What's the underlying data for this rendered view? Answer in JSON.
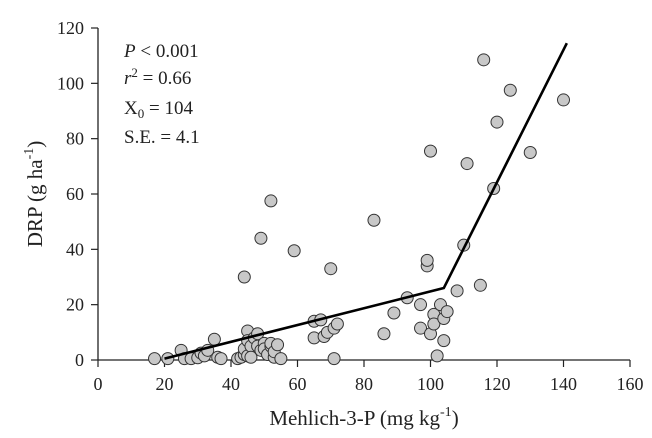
{
  "chart_data": {
    "type": "scatter",
    "xlabel": {
      "main": "Mehlich-3-P (mg kg",
      "sup": "-1",
      "close": ")"
    },
    "ylabel": {
      "main": "DRP (g ha",
      "sup": "-1",
      "close": ")"
    },
    "xlim": [
      0,
      160
    ],
    "ylim": [
      0,
      120
    ],
    "xticks": [
      "0",
      "20",
      "40",
      "60",
      "80",
      "100",
      "120",
      "140",
      "160"
    ],
    "yticks": [
      "0",
      "20",
      "40",
      "60",
      "80",
      "100",
      "120"
    ],
    "grid": false,
    "legend": "none",
    "annotations": {
      "p": {
        "sym": "P",
        "rest": " < 0.001"
      },
      "r2": {
        "sym": "r",
        "sup": "2",
        "rest": " = 0.66"
      },
      "x0": {
        "sym": "X",
        "sub": "0",
        "rest": " = 104"
      },
      "se": {
        "text": "S.E. = 4.1"
      }
    },
    "marker_fill": "#c8c8c8",
    "marker_edge": "#333333",
    "line_color": "#000000",
    "points": [
      [
        17,
        0.5
      ],
      [
        21,
        0.5
      ],
      [
        25,
        3.5
      ],
      [
        26,
        0.5
      ],
      [
        28,
        0.5
      ],
      [
        30,
        0.8
      ],
      [
        31,
        2.5
      ],
      [
        32,
        1.5
      ],
      [
        33,
        3.5
      ],
      [
        35,
        7.5
      ],
      [
        36,
        1
      ],
      [
        37,
        0.5
      ],
      [
        42,
        0.5
      ],
      [
        43,
        1
      ],
      [
        44,
        2
      ],
      [
        44,
        4
      ],
      [
        44,
        30
      ],
      [
        45,
        10.5
      ],
      [
        45,
        7
      ],
      [
        45,
        1.5
      ],
      [
        46,
        5
      ],
      [
        46,
        1
      ],
      [
        47,
        8
      ],
      [
        48,
        9.5
      ],
      [
        48,
        5
      ],
      [
        49,
        3.5
      ],
      [
        49,
        44
      ],
      [
        50,
        6
      ],
      [
        50,
        4
      ],
      [
        51,
        2
      ],
      [
        52,
        5
      ],
      [
        52,
        6
      ],
      [
        52,
        57.5
      ],
      [
        53,
        1
      ],
      [
        53,
        3
      ],
      [
        54,
        5.5
      ],
      [
        55,
        0.5
      ],
      [
        59,
        39.5
      ],
      [
        65,
        8
      ],
      [
        65,
        14
      ],
      [
        67,
        14.5
      ],
      [
        68,
        8.5
      ],
      [
        69,
        10
      ],
      [
        70,
        33
      ],
      [
        71,
        11.5
      ],
      [
        71,
        0.5
      ],
      [
        72,
        13
      ],
      [
        83,
        50.5
      ],
      [
        86,
        9.5
      ],
      [
        89,
        17
      ],
      [
        93,
        22.5
      ],
      [
        97,
        20
      ],
      [
        97,
        11.5
      ],
      [
        99,
        34
      ],
      [
        99,
        36
      ],
      [
        100,
        75.5
      ],
      [
        100,
        9.5
      ],
      [
        101,
        16.5
      ],
      [
        101,
        13
      ],
      [
        102,
        1.5
      ],
      [
        103,
        20
      ],
      [
        104,
        7
      ],
      [
        104,
        15
      ],
      [
        105,
        17.5
      ],
      [
        108,
        25
      ],
      [
        110,
        41.5
      ],
      [
        111,
        71
      ],
      [
        115,
        27
      ],
      [
        116,
        108.5
      ],
      [
        119,
        62
      ],
      [
        120,
        86
      ],
      [
        124,
        97.5
      ],
      [
        130,
        75
      ],
      [
        140,
        94
      ]
    ],
    "fit_line": {
      "x": [
        20,
        104,
        141
      ],
      "y": [
        0.5,
        26,
        114.5
      ]
    }
  }
}
